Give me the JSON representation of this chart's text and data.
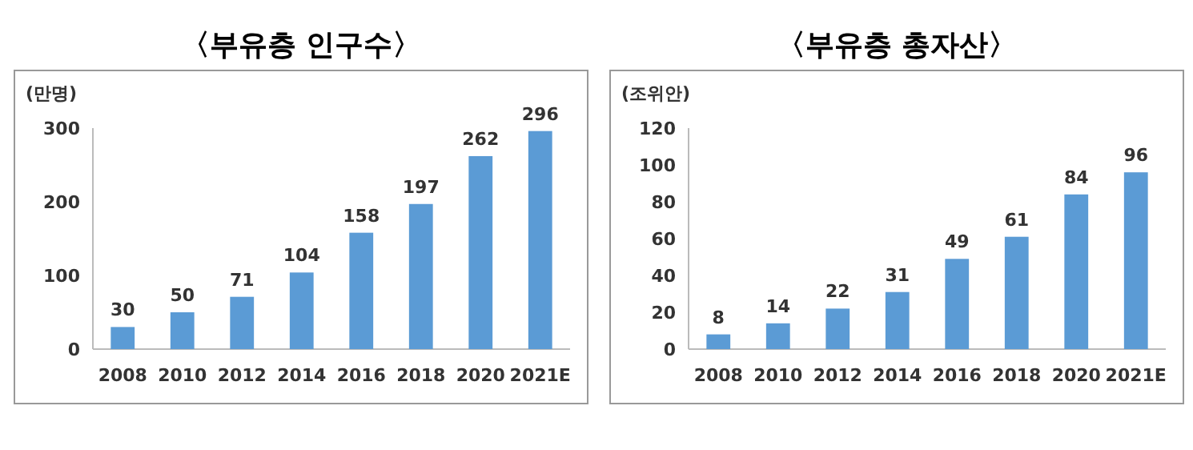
{
  "chart_data": [
    {
      "type": "bar",
      "title": "〈부유층 인구수〉",
      "ylabel": "(만명)",
      "categories": [
        "2008",
        "2010",
        "2012",
        "2014",
        "2016",
        "2018",
        "2020",
        "2021E"
      ],
      "series": [
        {
          "color": "#5b9bd5",
          "values": [
            30,
            50,
            71,
            104,
            158,
            197,
            262,
            296
          ]
        }
      ],
      "ylim": [
        0,
        300
      ],
      "yticks": [
        0,
        100,
        200,
        300
      ],
      "data_labels": true
    },
    {
      "type": "bar",
      "title": "〈부유층 총자산〉",
      "ylabel": "(조위안)",
      "categories": [
        "2008",
        "2010",
        "2012",
        "2014",
        "2016",
        "2018",
        "2020",
        "2021E"
      ],
      "series": [
        {
          "color": "#5b9bd5",
          "values": [
            8,
            14,
            22,
            31,
            49,
            61,
            84,
            96
          ]
        }
      ],
      "ylim": [
        0,
        120
      ],
      "yticks": [
        0,
        20,
        40,
        60,
        80,
        100,
        120
      ],
      "data_labels": true
    }
  ]
}
